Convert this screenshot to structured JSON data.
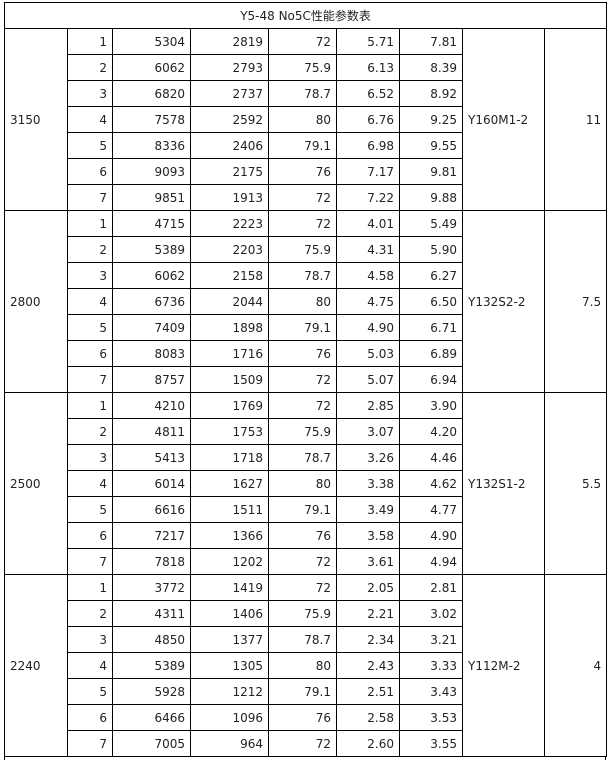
{
  "title": "Y5-48 No5C性能参数表",
  "groups": [
    {
      "speed": "3150",
      "motor": "Y160M1-2",
      "power": "11",
      "rows": [
        {
          "idx": "1",
          "flow": "5304",
          "pressure": "2819",
          "efficiency": "72",
          "shaft_power": "5.71",
          "required_power": "7.81"
        },
        {
          "idx": "2",
          "flow": "6062",
          "pressure": "2793",
          "efficiency": "75.9",
          "shaft_power": "6.13",
          "required_power": "8.39"
        },
        {
          "idx": "3",
          "flow": "6820",
          "pressure": "2737",
          "efficiency": "78.7",
          "shaft_power": "6.52",
          "required_power": "8.92"
        },
        {
          "idx": "4",
          "flow": "7578",
          "pressure": "2592",
          "efficiency": "80",
          "shaft_power": "6.76",
          "required_power": "9.25"
        },
        {
          "idx": "5",
          "flow": "8336",
          "pressure": "2406",
          "efficiency": "79.1",
          "shaft_power": "6.98",
          "required_power": "9.55"
        },
        {
          "idx": "6",
          "flow": "9093",
          "pressure": "2175",
          "efficiency": "76",
          "shaft_power": "7.17",
          "required_power": "9.81"
        },
        {
          "idx": "7",
          "flow": "9851",
          "pressure": "1913",
          "efficiency": "72",
          "shaft_power": "7.22",
          "required_power": "9.88"
        }
      ]
    },
    {
      "speed": "2800",
      "motor": "Y132S2-2",
      "power": "7.5",
      "rows": [
        {
          "idx": "1",
          "flow": "4715",
          "pressure": "2223",
          "efficiency": "72",
          "shaft_power": "4.01",
          "required_power": "5.49"
        },
        {
          "idx": "2",
          "flow": "5389",
          "pressure": "2203",
          "efficiency": "75.9",
          "shaft_power": "4.31",
          "required_power": "5.90"
        },
        {
          "idx": "3",
          "flow": "6062",
          "pressure": "2158",
          "efficiency": "78.7",
          "shaft_power": "4.58",
          "required_power": "6.27"
        },
        {
          "idx": "4",
          "flow": "6736",
          "pressure": "2044",
          "efficiency": "80",
          "shaft_power": "4.75",
          "required_power": "6.50"
        },
        {
          "idx": "5",
          "flow": "7409",
          "pressure": "1898",
          "efficiency": "79.1",
          "shaft_power": "4.90",
          "required_power": "6.71"
        },
        {
          "idx": "6",
          "flow": "8083",
          "pressure": "1716",
          "efficiency": "76",
          "shaft_power": "5.03",
          "required_power": "6.89"
        },
        {
          "idx": "7",
          "flow": "8757",
          "pressure": "1509",
          "efficiency": "72",
          "shaft_power": "5.07",
          "required_power": "6.94"
        }
      ]
    },
    {
      "speed": "2500",
      "motor": "Y132S1-2",
      "power": "5.5",
      "rows": [
        {
          "idx": "1",
          "flow": "4210",
          "pressure": "1769",
          "efficiency": "72",
          "shaft_power": "2.85",
          "required_power": "3.90"
        },
        {
          "idx": "2",
          "flow": "4811",
          "pressure": "1753",
          "efficiency": "75.9",
          "shaft_power": "3.07",
          "required_power": "4.20"
        },
        {
          "idx": "3",
          "flow": "5413",
          "pressure": "1718",
          "efficiency": "78.7",
          "shaft_power": "3.26",
          "required_power": "4.46"
        },
        {
          "idx": "4",
          "flow": "6014",
          "pressure": "1627",
          "efficiency": "80",
          "shaft_power": "3.38",
          "required_power": "4.62"
        },
        {
          "idx": "5",
          "flow": "6616",
          "pressure": "1511",
          "efficiency": "79.1",
          "shaft_power": "3.49",
          "required_power": "4.77"
        },
        {
          "idx": "6",
          "flow": "7217",
          "pressure": "1366",
          "efficiency": "76",
          "shaft_power": "3.58",
          "required_power": "4.90"
        },
        {
          "idx": "7",
          "flow": "7818",
          "pressure": "1202",
          "efficiency": "72",
          "shaft_power": "3.61",
          "required_power": "4.94"
        }
      ]
    },
    {
      "speed": "2240",
      "motor": "Y112M-2",
      "power": "4",
      "rows": [
        {
          "idx": "1",
          "flow": "3772",
          "pressure": "1419",
          "efficiency": "72",
          "shaft_power": "2.05",
          "required_power": "2.81"
        },
        {
          "idx": "2",
          "flow": "4311",
          "pressure": "1406",
          "efficiency": "75.9",
          "shaft_power": "2.21",
          "required_power": "3.02"
        },
        {
          "idx": "3",
          "flow": "4850",
          "pressure": "1377",
          "efficiency": "78.7",
          "shaft_power": "2.34",
          "required_power": "3.21"
        },
        {
          "idx": "4",
          "flow": "5389",
          "pressure": "1305",
          "efficiency": "80",
          "shaft_power": "2.43",
          "required_power": "3.33"
        },
        {
          "idx": "5",
          "flow": "5928",
          "pressure": "1212",
          "efficiency": "79.1",
          "shaft_power": "2.51",
          "required_power": "3.43"
        },
        {
          "idx": "6",
          "flow": "6466",
          "pressure": "1096",
          "efficiency": "76",
          "shaft_power": "2.58",
          "required_power": "3.53"
        },
        {
          "idx": "7",
          "flow": "7005",
          "pressure": "964",
          "efficiency": "72",
          "shaft_power": "2.60",
          "required_power": "3.55"
        }
      ]
    }
  ]
}
